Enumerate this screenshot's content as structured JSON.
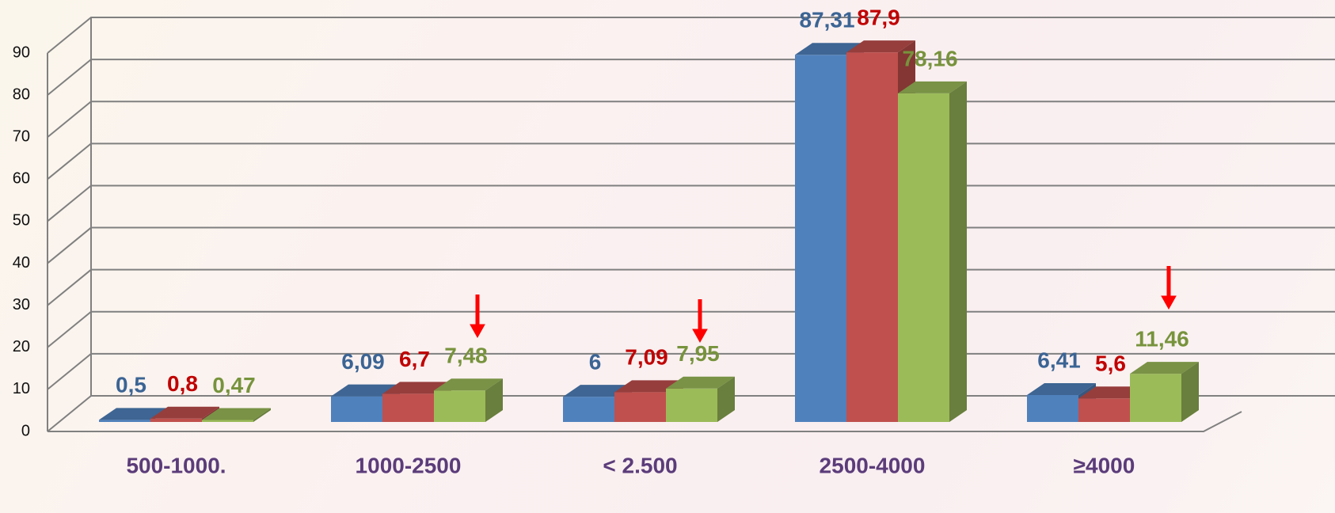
{
  "chart_data": {
    "type": "bar3d",
    "categories": [
      "500-1000.",
      "1000-2500",
      "< 2.500",
      "2500-4000",
      "≥4000"
    ],
    "series": [
      {
        "color": "#4f81bd",
        "label_color": "#3b6494",
        "values": [
          0.5,
          6.09,
          6,
          87.31,
          6.41
        ],
        "value_labels": [
          "0,5",
          "6,09",
          "6",
          "87,31",
          "6,41"
        ]
      },
      {
        "color": "#c0504d",
        "label_color": "#c00000",
        "values": [
          0.8,
          6.7,
          7.09,
          87.9,
          5.6
        ],
        "value_labels": [
          "0,8",
          "6,7",
          "7,09",
          "87,9",
          "5,6"
        ]
      },
      {
        "color": "#9bbb59",
        "label_color": "#77933c",
        "values": [
          0.47,
          7.48,
          7.95,
          78.16,
          11.46
        ],
        "value_labels": [
          "0,47",
          "7,48",
          "7,95",
          "78,16",
          "11,46"
        ]
      }
    ],
    "ylim": [
      0,
      90
    ],
    "yticks": [
      0,
      10,
      20,
      30,
      40,
      50,
      60,
      70,
      80,
      90
    ],
    "grid": true
  }
}
